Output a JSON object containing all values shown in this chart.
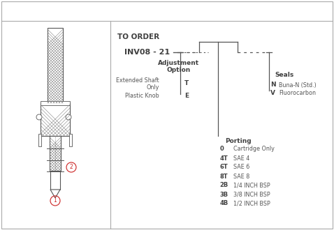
{
  "bg_color": "#ffffff",
  "border_color": "#aaaaaa",
  "text_color": "#555555",
  "dark_color": "#404040",
  "line_color": "#555555",
  "title": "TO ORDER",
  "title_fontsize": 7.5,
  "title_fontweight": "bold",
  "model": "INV08 - 21",
  "model_fontsize": 8,
  "model_fontweight": "bold",
  "adjustment_label": "Adjustment\nOption",
  "adjustment_fontsize": 7,
  "seals_label": "Seals",
  "seals_fontsize": 7,
  "porting_label": "Porting",
  "porting_fontsize": 7,
  "adj_options": [
    {
      "code": "T",
      "desc": "Extended Shaft\nOnly"
    },
    {
      "code": "E",
      "desc": "Plastic Knob"
    }
  ],
  "seal_options": [
    {
      "code": "N",
      "desc": "Buna-N (Std.)"
    },
    {
      "code": "V",
      "desc": "Fluorocarbon"
    }
  ],
  "porting_options": [
    {
      "code": "0",
      "desc": "Cartridge Only"
    },
    {
      "code": "4T",
      "desc": "SAE 4"
    },
    {
      "code": "6T",
      "desc": "SAE 6"
    },
    {
      "code": "8T",
      "desc": "SAE 8"
    },
    {
      "code": "2B",
      "desc": "1/4 INCH BSP"
    },
    {
      "code": "3B",
      "desc": "3/8 INCH BSP"
    },
    {
      "code": "4B",
      "desc": "1/2 INCH BSP"
    }
  ],
  "circle1_label": "1",
  "circle2_label": "2"
}
